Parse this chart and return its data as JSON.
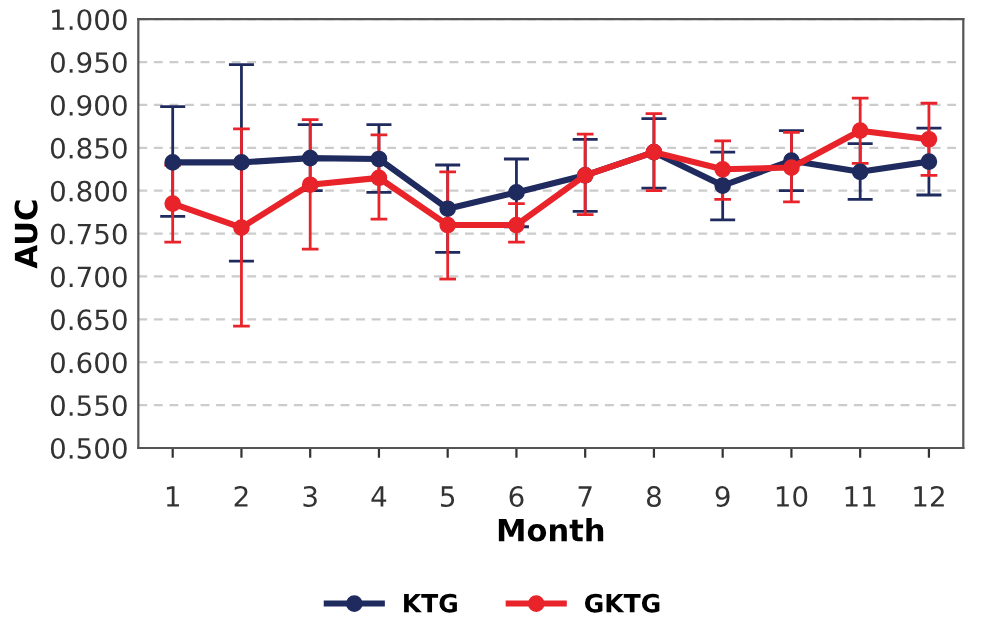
{
  "chart_data": {
    "type": "line",
    "xlabel": "Month",
    "ylabel": "AUC",
    "categories": [
      "1",
      "2",
      "3",
      "4",
      "5",
      "6",
      "7",
      "8",
      "9",
      "10",
      "11",
      "12"
    ],
    "series": [
      {
        "name": "KTG",
        "color": "#1f2a5e",
        "values": [
          0.833,
          0.833,
          0.838,
          0.837,
          0.779,
          0.798,
          0.818,
          0.845,
          0.806,
          0.835,
          0.822,
          0.834
        ],
        "errors": [
          [
            0.77,
            0.898
          ],
          [
            0.718,
            0.947
          ],
          [
            0.8,
            0.877
          ],
          [
            0.798,
            0.877
          ],
          [
            0.728,
            0.83
          ],
          [
            0.758,
            0.837
          ],
          [
            0.776,
            0.86
          ],
          [
            0.803,
            0.884
          ],
          [
            0.766,
            0.845
          ],
          [
            0.8,
            0.87
          ],
          [
            0.79,
            0.855
          ],
          [
            0.795,
            0.873
          ]
        ]
      },
      {
        "name": "GKTG",
        "color": "#e8232a",
        "values": [
          0.785,
          0.757,
          0.807,
          0.815,
          0.76,
          0.76,
          0.818,
          0.845,
          0.825,
          0.827,
          0.87,
          0.86
        ],
        "errors": [
          [
            0.74,
            0.83
          ],
          [
            0.642,
            0.872
          ],
          [
            0.732,
            0.883
          ],
          [
            0.767,
            0.865
          ],
          [
            0.697,
            0.822
          ],
          [
            0.74,
            0.785
          ],
          [
            0.772,
            0.866
          ],
          [
            0.8,
            0.89
          ],
          [
            0.79,
            0.858
          ],
          [
            0.787,
            0.868
          ],
          [
            0.832,
            0.908
          ],
          [
            0.818,
            0.902
          ]
        ]
      }
    ],
    "ylim": [
      0.5,
      1.0
    ],
    "yticks": [
      {
        "value": 0.5,
        "label": "0.500"
      },
      {
        "value": 0.55,
        "label": "0.550"
      },
      {
        "value": 0.6,
        "label": "0.600"
      },
      {
        "value": 0.65,
        "label": "0.650"
      },
      {
        "value": 0.7,
        "label": "0.700"
      },
      {
        "value": 0.75,
        "label": "0.750"
      },
      {
        "value": 0.8,
        "label": "0.800"
      },
      {
        "value": 0.85,
        "label": "0.850"
      },
      {
        "value": 0.9,
        "label": "0.900"
      },
      {
        "value": 0.95,
        "label": "0.950"
      },
      {
        "value": 1.0,
        "label": "1.000"
      }
    ],
    "grid": "y",
    "legend": "bottom",
    "marker": "circle",
    "line_style": "solid"
  }
}
